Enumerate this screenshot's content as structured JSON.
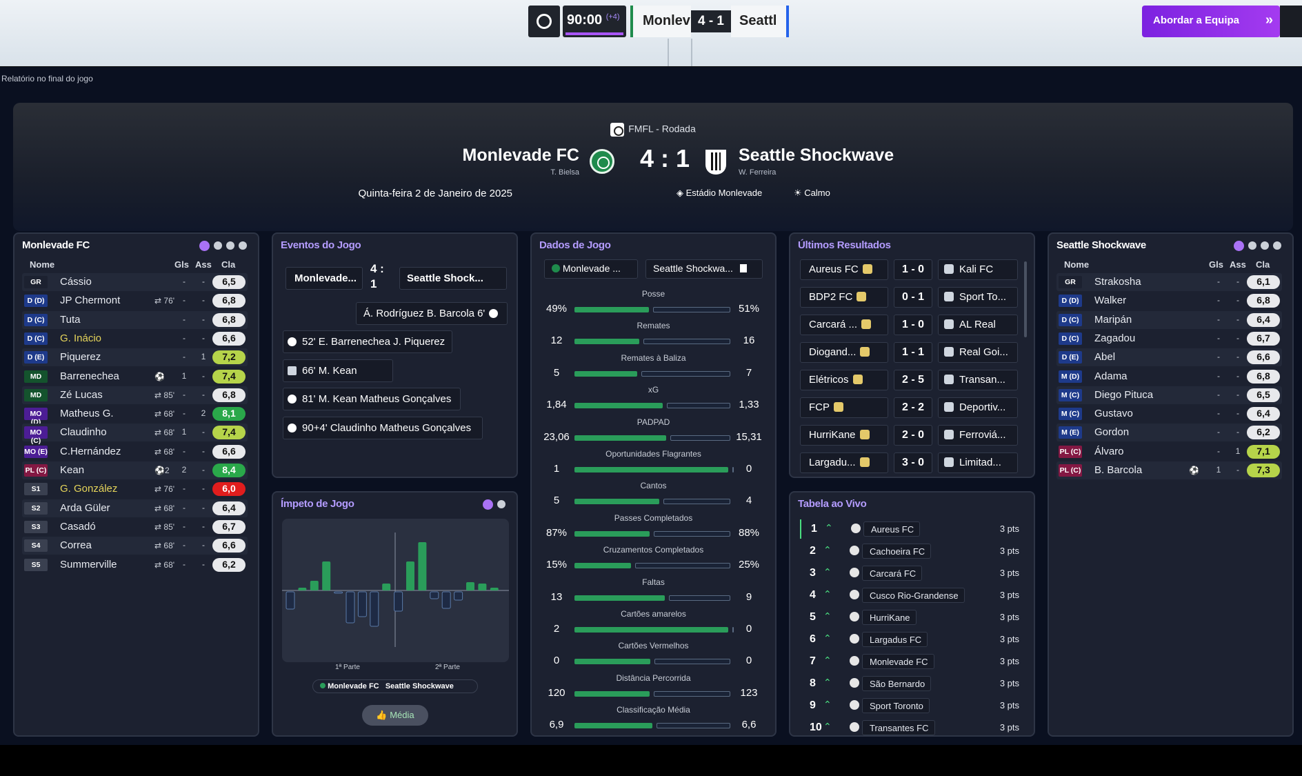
{
  "topbar": {
    "time": "90:00",
    "added": "(+4)",
    "home_short": "Monlev",
    "score": "4 - 1",
    "away_short": "Seattl",
    "action_button": "Abordar a Equipa"
  },
  "subtitle": "Relatório no final do jogo",
  "match": {
    "competition": "FMFL - Rodada",
    "home": "Monlevade FC",
    "home_coach": "T. Bielsa",
    "score": "4 : 1",
    "away": "Seattle Shockwave",
    "away_coach": "W. Ferreira",
    "date": "Quinta-feira 2 de Janeiro de 2025",
    "venue": "Estádio Monlevade",
    "weather": "Calmo"
  },
  "home_panel": {
    "title": "Monlevade FC",
    "headers": {
      "name": "Nome",
      "gls": "Gls",
      "ass": "Ass",
      "rating": "Cla"
    },
    "players": [
      {
        "pos": "GR",
        "name": "Cássio",
        "sub": "",
        "gls": "-",
        "ass": "-",
        "rating": "6,5",
        "style": "white",
        "pos_color": "#1c2130"
      },
      {
        "pos": "D (D)",
        "name": "JP Chermont",
        "sub": "⇄ 76'",
        "gls": "-",
        "ass": "-",
        "rating": "6,8",
        "style": "white",
        "pos_color": "#1e3a8a"
      },
      {
        "pos": "D (C)",
        "name": "Tuta",
        "sub": "",
        "gls": "-",
        "ass": "-",
        "rating": "6,8",
        "style": "white",
        "pos_color": "#1e3a8a"
      },
      {
        "pos": "D (C)",
        "name": "G. Inácio",
        "sub": "",
        "gls": "-",
        "ass": "-",
        "rating": "6,6",
        "style": "white",
        "pos_color": "#1e3a8a",
        "yellow": true
      },
      {
        "pos": "D (E)",
        "name": "Piquerez",
        "sub": "",
        "gls": "-",
        "ass": "1",
        "rating": "7,2",
        "style": "lime",
        "pos_color": "#1e3a8a"
      },
      {
        "pos": "MD",
        "name": "Barrenechea",
        "sub": "⚽",
        "gls": "1",
        "ass": "-",
        "rating": "7,4",
        "style": "lime",
        "pos_color": "#14532d"
      },
      {
        "pos": "MD",
        "name": "Zé Lucas",
        "sub": "⇄ 85'",
        "gls": "-",
        "ass": "-",
        "rating": "6,8",
        "style": "white",
        "pos_color": "#14532d"
      },
      {
        "pos": "MO (D)",
        "name": "Matheus G.",
        "sub": "⇄ 68'",
        "gls": "-",
        "ass": "2",
        "rating": "8,1",
        "style": "green",
        "pos_color": "#4c1d95"
      },
      {
        "pos": "MO (C)",
        "name": "Claudinho",
        "sub": "⇄ 68'",
        "gls": "1",
        "ass": "-",
        "rating": "7,4",
        "style": "lime",
        "pos_color": "#4c1d95"
      },
      {
        "pos": "MO (E)",
        "name": "C.Hernández",
        "sub": "⇄ 68'",
        "gls": "-",
        "ass": "-",
        "rating": "6,6",
        "style": "white",
        "pos_color": "#4c1d95"
      },
      {
        "pos": "PL (C)",
        "name": "Kean",
        "sub": "⚽2",
        "gls": "2",
        "ass": "-",
        "rating": "8,4",
        "style": "green",
        "pos_color": "#831843"
      },
      {
        "pos": "S1",
        "name": "G. González",
        "sub": "⇄ 76'",
        "gls": "-",
        "ass": "-",
        "rating": "6,0",
        "style": "red",
        "pos_color": "#3a4050",
        "yellow": true
      },
      {
        "pos": "S2",
        "name": "Arda Güler",
        "sub": "⇄ 68'",
        "gls": "-",
        "ass": "-",
        "rating": "6,4",
        "style": "white",
        "pos_color": "#3a4050"
      },
      {
        "pos": "S3",
        "name": "Casadó",
        "sub": "⇄ 85'",
        "gls": "-",
        "ass": "-",
        "rating": "6,7",
        "style": "white",
        "pos_color": "#3a4050"
      },
      {
        "pos": "S4",
        "name": "Correa",
        "sub": "⇄ 68'",
        "gls": "-",
        "ass": "-",
        "rating": "6,6",
        "style": "white",
        "pos_color": "#3a4050"
      },
      {
        "pos": "S5",
        "name": "Summerville",
        "sub": "⇄ 68'",
        "gls": "-",
        "ass": "-",
        "rating": "6,2",
        "style": "white",
        "pos_color": "#3a4050"
      }
    ]
  },
  "events_panel": {
    "title": "Eventos do Jogo",
    "home": "Monlevade...",
    "score": "4 : 1",
    "away": "Seattle Shock...",
    "away_events": [
      {
        "text": "Á. Rodríguez  B. Barcola  6'"
      }
    ],
    "home_events": [
      {
        "text": "52'  E. Barrenechea  J. Piquerez",
        "type": "goal"
      },
      {
        "text": "66'  M. Kean",
        "type": "penalty"
      },
      {
        "text": "81'  M. Kean  Matheus Gonçalves",
        "type": "goal"
      },
      {
        "text": "90+4'  Claudinho  Matheus Gonçalves",
        "type": "goal"
      }
    ]
  },
  "momentum_panel": {
    "title": "Ímpeto de Jogo",
    "first_half": "1ª Parte",
    "second_half": "2ª Parte",
    "legend_home": "Monlevade FC",
    "legend_away": "Seattle Shockwave",
    "button": "Média",
    "bars": [
      {
        "v": -0.25
      },
      {
        "v": 0.04
      },
      {
        "v": 0.14
      },
      {
        "v": 0.42
      },
      {
        "v": -0.02
      },
      {
        "v": -0.45
      },
      {
        "v": -0.36
      },
      {
        "v": -0.5
      },
      {
        "v": 0.1
      },
      {
        "v": -0.28
      },
      {
        "v": 0.42
      },
      {
        "v": 0.7
      },
      {
        "v": -0.1
      },
      {
        "v": -0.24
      },
      {
        "v": -0.12
      },
      {
        "v": 0.12
      },
      {
        "v": 0.1
      },
      {
        "v": 0.04
      }
    ]
  },
  "stats_panel": {
    "title": "Dados de Jogo",
    "home": "Monlevade ...",
    "away": "Seattle Shockwa...",
    "home_color": "#2a9d5a",
    "away_color": "#5a6b82",
    "stats": [
      {
        "label": "Posse",
        "home": "49%",
        "away": "51%",
        "h": 49,
        "a": 51
      },
      {
        "label": "Remates",
        "home": "12",
        "away": "16",
        "h": 12,
        "a": 16
      },
      {
        "label": "Remates à Baliza",
        "home": "5",
        "away": "7",
        "h": 5,
        "a": 7
      },
      {
        "label": "xG",
        "home": "1,84",
        "away": "1,33",
        "h": 1.84,
        "a": 1.33
      },
      {
        "label": "PADPAD",
        "home": "23,06",
        "away": "15,31",
        "h": 23.06,
        "a": 15.31
      },
      {
        "label": "Oportunidades Flagrantes",
        "home": "1",
        "away": "0",
        "h": 1,
        "a": 0
      },
      {
        "label": "Cantos",
        "home": "5",
        "away": "4",
        "h": 5,
        "a": 4
      },
      {
        "label": "Passes Completados",
        "home": "87%",
        "away": "88%",
        "h": 87,
        "a": 88
      },
      {
        "label": "Cruzamentos Completados",
        "home": "15%",
        "away": "25%",
        "h": 15,
        "a": 25
      },
      {
        "label": "Faltas",
        "home": "13",
        "away": "9",
        "h": 13,
        "a": 9
      },
      {
        "label": "Cartões amarelos",
        "home": "2",
        "away": "0",
        "h": 2,
        "a": 0
      },
      {
        "label": "Cartões Vermelhos",
        "home": "0",
        "away": "0",
        "h": 0,
        "a": 0
      },
      {
        "label": "Distância Percorrida",
        "home": "120",
        "away": "123",
        "h": 120,
        "a": 123
      },
      {
        "label": "Classificação Média",
        "home": "6,9",
        "away": "6,6",
        "h": 6.9,
        "a": 6.6
      }
    ]
  },
  "results_panel": {
    "title": "Últimos Resultados",
    "results": [
      {
        "home": "Aureus FC",
        "score": "1 - 0",
        "away": "Kali FC"
      },
      {
        "home": "BDP2 FC",
        "score": "0 - 1",
        "away": "Sport To..."
      },
      {
        "home": "Carcará ...",
        "score": "1 - 0",
        "away": "AL Real"
      },
      {
        "home": "Diogand...",
        "score": "1 - 1",
        "away": "Real Goi..."
      },
      {
        "home": "Elétricos",
        "score": "2 - 5",
        "away": "Transan..."
      },
      {
        "home": "FCP",
        "score": "2 - 2",
        "away": "Deportiv..."
      },
      {
        "home": "HurriKane",
        "score": "2 - 0",
        "away": "Ferroviá..."
      },
      {
        "home": "Largadu...",
        "score": "3 - 0",
        "away": "Limitad..."
      }
    ]
  },
  "table_panel": {
    "title": "Tabela ao Vivo",
    "rows": [
      {
        "pos": "1",
        "name": "Aureus FC",
        "pts": "3 pts"
      },
      {
        "pos": "2",
        "name": "Cachoeira FC",
        "pts": "3 pts"
      },
      {
        "pos": "3",
        "name": "Carcará FC",
        "pts": "3 pts"
      },
      {
        "pos": "4",
        "name": "Cusco Rio-Grandense",
        "pts": "3 pts"
      },
      {
        "pos": "5",
        "name": "HurriKane",
        "pts": "3 pts"
      },
      {
        "pos": "6",
        "name": "Largadus FC",
        "pts": "3 pts"
      },
      {
        "pos": "7",
        "name": "Monlevade FC",
        "pts": "3 pts"
      },
      {
        "pos": "8",
        "name": "São Bernardo",
        "pts": "3 pts"
      },
      {
        "pos": "9",
        "name": "Sport Toronto",
        "pts": "3 pts"
      },
      {
        "pos": "10",
        "name": "Transantes FC",
        "pts": "3 pts"
      }
    ]
  },
  "away_panel": {
    "title": "Seattle Shockwave",
    "headers": {
      "name": "Nome",
      "gls": "Gls",
      "ass": "Ass",
      "rating": "Cla"
    },
    "players": [
      {
        "pos": "GR",
        "name": "Strakosha",
        "sub": "",
        "gls": "-",
        "ass": "-",
        "rating": "6,1",
        "style": "white",
        "pos_color": "#1c2130"
      },
      {
        "pos": "D (D)",
        "name": "Walker",
        "sub": "",
        "gls": "-",
        "ass": "-",
        "rating": "6,8",
        "style": "white",
        "pos_color": "#1e3a8a"
      },
      {
        "pos": "D (C)",
        "name": "Maripán",
        "sub": "",
        "gls": "-",
        "ass": "-",
        "rating": "6,4",
        "style": "white",
        "pos_color": "#1e3a8a"
      },
      {
        "pos": "D (C)",
        "name": "Zagadou",
        "sub": "",
        "gls": "-",
        "ass": "-",
        "rating": "6,7",
        "style": "white",
        "pos_color": "#1e3a8a"
      },
      {
        "pos": "D (E)",
        "name": "Abel",
        "sub": "",
        "gls": "-",
        "ass": "-",
        "rating": "6,6",
        "style": "white",
        "pos_color": "#1e3a8a"
      },
      {
        "pos": "M (D)",
        "name": "Adama",
        "sub": "",
        "gls": "-",
        "ass": "-",
        "rating": "6,8",
        "style": "white",
        "pos_color": "#1e3a8a"
      },
      {
        "pos": "M (C)",
        "name": "Diego Pituca",
        "sub": "",
        "gls": "-",
        "ass": "-",
        "rating": "6,5",
        "style": "white",
        "pos_color": "#1e3a8a"
      },
      {
        "pos": "M (C)",
        "name": "Gustavo",
        "sub": "",
        "gls": "-",
        "ass": "-",
        "rating": "6,4",
        "style": "white",
        "pos_color": "#1e3a8a"
      },
      {
        "pos": "M (E)",
        "name": "Gordon",
        "sub": "",
        "gls": "-",
        "ass": "-",
        "rating": "6,2",
        "style": "white",
        "pos_color": "#1e3a8a"
      },
      {
        "pos": "PL (C)",
        "name": "Álvaro",
        "sub": "",
        "gls": "-",
        "ass": "1",
        "rating": "7,1",
        "style": "lime",
        "pos_color": "#831843"
      },
      {
        "pos": "PL (C)",
        "name": "B. Barcola",
        "sub": "⚽",
        "gls": "1",
        "ass": "-",
        "rating": "7,3",
        "style": "lime",
        "pos_color": "#831843"
      }
    ]
  }
}
